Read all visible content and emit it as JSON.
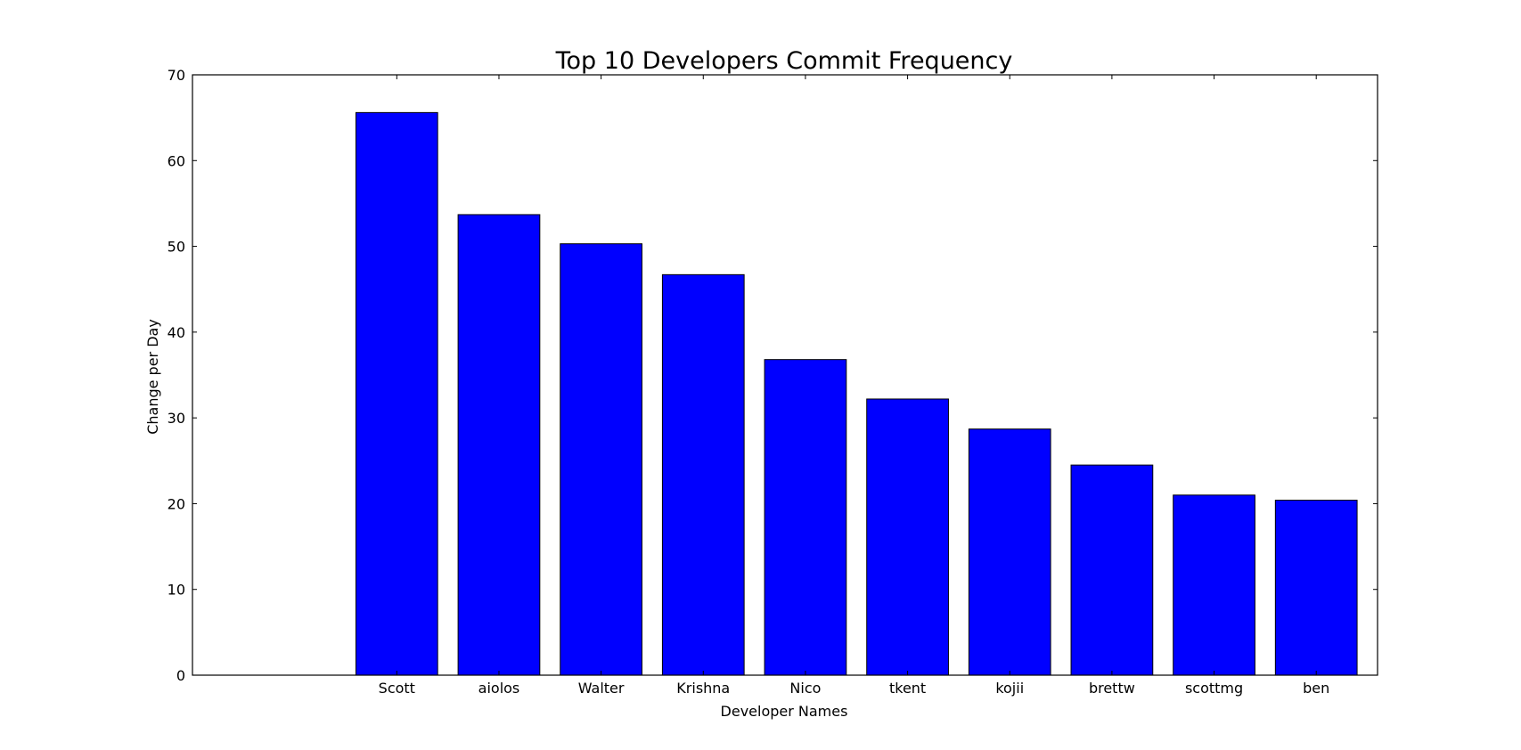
{
  "chart_data": {
    "type": "bar",
    "title": "Top 10 Developers Commit Frequency",
    "xlabel": "Developer Names",
    "ylabel": "Change per Day",
    "categories": [
      "Scott",
      "aiolos",
      "Walter",
      "Krishna",
      "Nico",
      "tkent",
      "kojii",
      "brettw",
      "scottmg",
      "ben"
    ],
    "values": [
      65.6,
      53.7,
      50.3,
      46.7,
      36.8,
      32.2,
      28.7,
      24.5,
      21.0,
      20.4
    ],
    "ylim": [
      0,
      70
    ],
    "yticks": [
      0,
      10,
      20,
      30,
      40,
      50,
      60,
      70
    ],
    "grid": false,
    "legend": "none",
    "bar_color": "#0000ff",
    "edge_color": "#000000"
  }
}
